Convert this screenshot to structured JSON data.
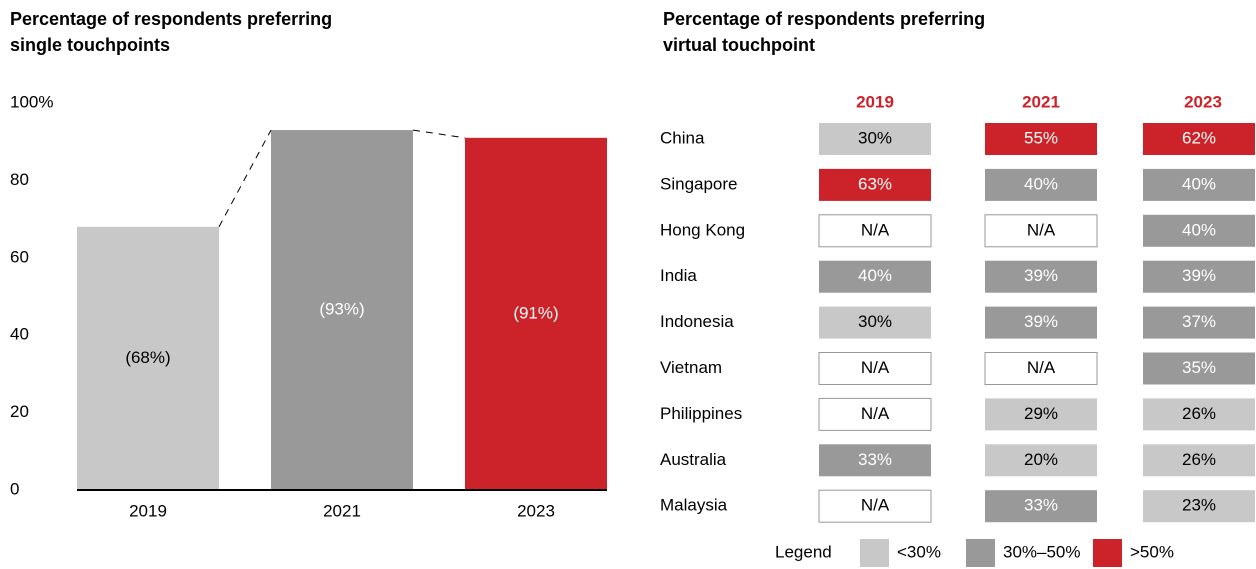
{
  "chart_data": [
    {
      "type": "bar",
      "title": [
        "Percentage of respondents preferring",
        "single touchpoints"
      ],
      "categories": [
        "2019",
        "2021",
        "2023"
      ],
      "values": [
        68,
        93,
        91
      ],
      "value_labels": [
        "(68%)",
        "(93%)",
        "(91%)"
      ],
      "colors": [
        "#c8c8c8",
        "#999999",
        "#cc2229"
      ],
      "label_colors": [
        "#000000",
        "#ffffff",
        "#ffffff"
      ],
      "ylim": [
        0,
        100
      ],
      "yticks": [
        0,
        20,
        40,
        60,
        80,
        {
          "value": 100,
          "label": "100%"
        }
      ]
    },
    {
      "type": "heatmap",
      "title": [
        "Percentage of respondents preferring",
        "virtual touchpoint"
      ],
      "columns": [
        "2019",
        "2021",
        "2023"
      ],
      "rows": [
        "China",
        "Singapore",
        "Hong Kong",
        "India",
        "Indonesia",
        "Vietnam",
        "Philippines",
        "Australia",
        "Malaysia"
      ],
      "values": [
        [
          30,
          55,
          62
        ],
        [
          63,
          40,
          40
        ],
        [
          null,
          null,
          40
        ],
        [
          40,
          39,
          39
        ],
        [
          30,
          39,
          37
        ],
        [
          null,
          null,
          35
        ],
        [
          null,
          29,
          26
        ],
        [
          33,
          20,
          26
        ],
        [
          null,
          33,
          23
        ]
      ],
      "value_labels": [
        [
          "30%",
          "55%",
          "62%"
        ],
        [
          "63%",
          "40%",
          "40%"
        ],
        [
          "N/A",
          "N/A",
          "40%"
        ],
        [
          "40%",
          "39%",
          "39%"
        ],
        [
          "30%",
          "39%",
          "37%"
        ],
        [
          "N/A",
          "N/A",
          "35%"
        ],
        [
          "N/A",
          "29%",
          "26%"
        ],
        [
          "33%",
          "20%",
          "26%"
        ],
        [
          "N/A",
          "33%",
          "23%"
        ]
      ],
      "legend_title": "Legend",
      "legend": [
        {
          "label": "<30%",
          "color": "#c8c8c8",
          "text_color": "#000000",
          "range": [
            null,
            30
          ]
        },
        {
          "label": "30%–50%",
          "color": "#999999",
          "text_color": "#ffffff",
          "range": [
            30,
            50
          ]
        },
        {
          "label": ">50%",
          "color": "#cc2229",
          "text_color": "#ffffff",
          "range": [
            50,
            null
          ]
        }
      ]
    }
  ]
}
